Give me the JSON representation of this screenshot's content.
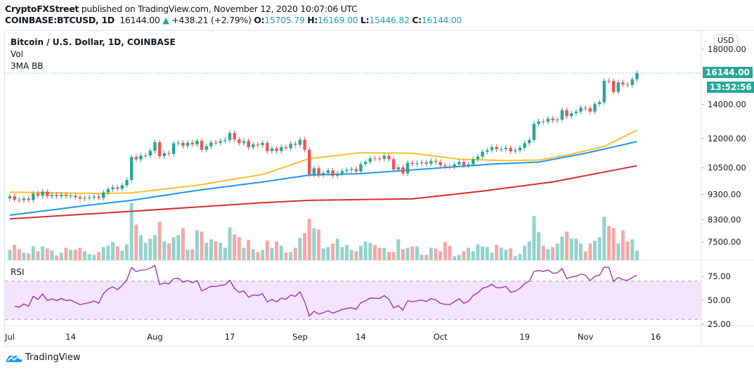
{
  "header": {
    "publisher": "CryptoFXStreet",
    "published_text": "published on TradingView.com, November 12, 2020 10:07:06 UTC",
    "symbol": "COINBASE:BTCUSD, 1D",
    "last": "16144.00",
    "change": "+438.21 (+2.79%)",
    "o_label": "O:",
    "o": "15705.79",
    "h_label": "H:",
    "h": "16169.00",
    "l_label": "L:",
    "l": "15446.82",
    "c_label": "C:",
    "c": "16144.00"
  },
  "legend": {
    "title": "Bitcoin / U.S. Dollar, 1D, COINBASE",
    "vol": "Vol",
    "ma": "3MA BB",
    "rsi": "RSI"
  },
  "price_axis": {
    "currency": "USD",
    "ticks": [
      "18000.00",
      "14000.00",
      "12000.00",
      "10500.00",
      "9300.00",
      "8300.00",
      "7500.00"
    ],
    "last_price_tag": "16144.00",
    "countdown": "13:52:56"
  },
  "rsi_axis": {
    "ticks": [
      "75.00",
      "50.00",
      "25.00"
    ]
  },
  "time_axis": {
    "labels": [
      {
        "text": "Jul",
        "date": "2020-07-01"
      },
      {
        "text": "14",
        "date": "2020-07-14"
      },
      {
        "text": "Aug",
        "date": "2020-08-01"
      },
      {
        "text": "17",
        "date": "2020-08-17"
      },
      {
        "text": "Sep",
        "date": "2020-09-01"
      },
      {
        "text": "14",
        "date": "2020-09-14"
      },
      {
        "text": "Oct",
        "date": "2020-10-01"
      },
      {
        "text": "19",
        "date": "2020-10-19"
      },
      {
        "text": "Nov",
        "date": "2020-11-01"
      },
      {
        "text": "16",
        "date": "2020-11-16"
      }
    ]
  },
  "footer": {
    "brand": "TradingView"
  },
  "colors": {
    "up": "#26a69a",
    "down": "#ef5350",
    "vol_up": "#94d2cb",
    "vol_down": "#f5a8a6",
    "ma_fast": "#fbc02d",
    "ma_mid": "#2196f3",
    "ma_slow": "#d32f2f",
    "rsi": "#9c27b0",
    "rsi_band": "#f3e5fd"
  },
  "chart_data": {
    "type": "candlestick",
    "x_start": "2020-07-01",
    "interval": "1D",
    "y_scale": "log",
    "ylim": [
      7200,
      18500
    ],
    "close": [
      9228,
      9088,
      9060,
      9135,
      9073,
      9340,
      9250,
      9430,
      9235,
      9290,
      9235,
      9300,
      9240,
      9255,
      9190,
      9130,
      9155,
      9175,
      9210,
      9160,
      9390,
      9530,
      9610,
      9550,
      9700,
      9935,
      11030,
      10910,
      11100,
      11110,
      11350,
      11800,
      11070,
      11230,
      11190,
      11740,
      11770,
      11600,
      11770,
      11680,
      11880,
      11400,
      11580,
      11780,
      11770,
      11860,
      11910,
      12300,
      11950,
      11750,
      11860,
      11530,
      11680,
      11650,
      11760,
      11330,
      11470,
      11330,
      11540,
      11480,
      11720,
      11660,
      11930,
      11400,
      10180,
      10480,
      10170,
      10260,
      10380,
      10130,
      10230,
      10350,
      10400,
      10440,
      10330,
      10680,
      10790,
      10960,
      10950,
      10940,
      11090,
      10920,
      10420,
      10530,
      10240,
      10740,
      10690,
      10730,
      10770,
      10700,
      10840,
      10780,
      10620,
      10570,
      10550,
      10670,
      10790,
      10600,
      10670,
      10920,
      11060,
      11300,
      11380,
      11540,
      11430,
      11430,
      11500,
      11320,
      11370,
      11500,
      11750,
      11920,
      12820,
      12970,
      12940,
      13130,
      13030,
      13070,
      13650,
      13280,
      13460,
      13560,
      13800,
      13760,
      13560,
      14030,
      14150,
      15590,
      15580,
      14830,
      15480,
      15330,
      15300,
      15705.79,
      16144
    ],
    "first_open": 9135,
    "volume_relative": [
      44,
      65,
      47,
      32,
      29,
      59,
      38,
      59,
      50,
      41,
      20,
      32,
      53,
      44,
      44,
      53,
      38,
      26,
      23,
      35,
      56,
      62,
      77,
      59,
      41,
      68,
      243,
      152,
      107,
      74,
      92,
      107,
      164,
      80,
      71,
      98,
      107,
      137,
      44,
      47,
      128,
      122,
      74,
      89,
      80,
      74,
      53,
      140,
      110,
      98,
      53,
      86,
      47,
      35,
      44,
      83,
      53,
      80,
      62,
      32,
      35,
      53,
      95,
      116,
      176,
      137,
      131,
      50,
      56,
      71,
      92,
      56,
      65,
      44,
      38,
      62,
      80,
      74,
      65,
      53,
      53,
      35,
      35,
      89,
      47,
      53,
      59,
      59,
      23,
      23,
      53,
      50,
      38,
      77,
      62,
      17,
      23,
      38,
      53,
      38,
      68,
      59,
      56,
      32,
      65,
      53,
      44,
      50,
      17,
      26,
      62,
      80,
      188,
      119,
      62,
      47,
      56,
      71,
      101,
      122,
      92,
      92,
      71,
      38,
      71,
      83,
      98,
      185,
      146,
      137,
      71,
      128,
      80,
      89,
      41
    ],
    "moving_averages": [
      {
        "color_key": "ma_fast",
        "points": [
          [
            "2020-07-01",
            9405
          ],
          [
            "2020-07-20",
            9345
          ],
          [
            "2020-07-27",
            9375
          ],
          [
            "2020-08-10",
            9700
          ],
          [
            "2020-08-24",
            10190
          ],
          [
            "2020-09-03",
            10950
          ],
          [
            "2020-09-14",
            11250
          ],
          [
            "2020-09-25",
            11220
          ],
          [
            "2020-10-05",
            10920
          ],
          [
            "2020-10-15",
            10860
          ],
          [
            "2020-10-22",
            10880
          ],
          [
            "2020-10-28",
            11130
          ],
          [
            "2020-11-05",
            11570
          ],
          [
            "2020-11-12",
            12460
          ]
        ]
      },
      {
        "color_key": "ma_mid",
        "points": [
          [
            "2020-07-01",
            8470
          ],
          [
            "2020-07-20",
            8910
          ],
          [
            "2020-07-27",
            9060
          ],
          [
            "2020-08-10",
            9480
          ],
          [
            "2020-08-24",
            9850
          ],
          [
            "2020-09-03",
            10160
          ],
          [
            "2020-09-14",
            10230
          ],
          [
            "2020-10-01",
            10500
          ],
          [
            "2020-10-12",
            10680
          ],
          [
            "2020-10-22",
            10780
          ],
          [
            "2020-11-01",
            11220
          ],
          [
            "2020-11-12",
            11830
          ]
        ]
      },
      {
        "color_key": "ma_slow",
        "points": [
          [
            "2020-07-01",
            8330
          ],
          [
            "2020-07-27",
            8620
          ],
          [
            "2020-08-24",
            8960
          ],
          [
            "2020-09-03",
            9060
          ],
          [
            "2020-09-25",
            9120
          ],
          [
            "2020-10-10",
            9450
          ],
          [
            "2020-10-25",
            9850
          ],
          [
            "2020-11-12",
            10600
          ]
        ]
      }
    ],
    "rsi": {
      "period": 14,
      "band": [
        30,
        70
      ],
      "ylim": [
        25,
        95
      ]
    }
  }
}
